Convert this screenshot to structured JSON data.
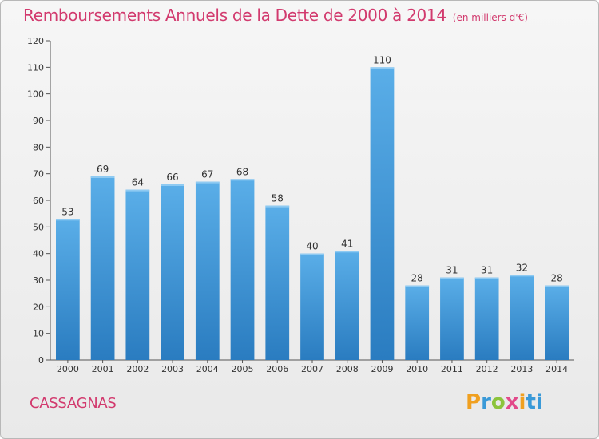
{
  "chart_data": {
    "type": "bar",
    "title": "Remboursements Annuels de la Dette de 2000 à 2014",
    "subtitle": "(en milliers d'€)",
    "categories": [
      "2000",
      "2001",
      "2002",
      "2003",
      "2004",
      "2005",
      "2006",
      "2007",
      "2008",
      "2009",
      "2010",
      "2011",
      "2012",
      "2013",
      "2014"
    ],
    "values": [
      53,
      69,
      64,
      66,
      67,
      68,
      58,
      40,
      41,
      110,
      28,
      31,
      31,
      32,
      28
    ],
    "ylim": [
      0,
      120
    ],
    "yticks": [
      0,
      10,
      20,
      30,
      40,
      50,
      60,
      70,
      80,
      90,
      100,
      110,
      120
    ],
    "grid": false,
    "colors": {
      "bar_top": "#5aaee8",
      "bar_bottom": "#2a7cc0"
    }
  },
  "footer": {
    "commune": "CASSAGNAS",
    "logo": [
      "P",
      "r",
      "o",
      "x",
      "i",
      "ti"
    ]
  }
}
